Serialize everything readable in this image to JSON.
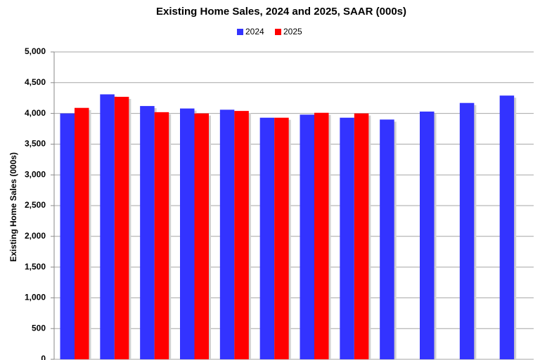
{
  "chart_data": {
    "type": "bar",
    "title": "Existing Home Sales,  2024 and 2025, SAAR (000s)",
    "y_label": "Existing Home Sales (000s)",
    "categories": [
      null,
      null,
      null,
      null,
      null,
      null,
      null,
      null,
      null,
      null,
      null,
      null
    ],
    "series": [
      {
        "name": "2024",
        "color": "#3333ff",
        "values": [
          4000,
          4310,
          4120,
          4080,
          4060,
          3930,
          3980,
          3930,
          3900,
          4030,
          4170,
          4290
        ]
      },
      {
        "name": "2025",
        "color": "#ff0000",
        "values": [
          4090,
          4270,
          4020,
          4000,
          4040,
          3930,
          4010,
          4000,
          null,
          null,
          null,
          null
        ]
      }
    ],
    "ylim": [
      0,
      5000
    ],
    "yticks": [
      0,
      {
        "value": 500,
        "label": "500"
      },
      {
        "value": 1000,
        "label": "1,000"
      },
      {
        "value": 1500,
        "label": "1,500"
      },
      {
        "value": 2000,
        "label": "2,000"
      },
      {
        "value": 2500,
        "label": "2,500"
      },
      {
        "value": 3000,
        "label": "3,000"
      },
      {
        "value": 3500,
        "label": "3,500"
      },
      {
        "value": 4000,
        "label": "4,000"
      },
      {
        "value": 4500,
        "label": "4,500"
      },
      {
        "value": 5000,
        "label": "5,000"
      }
    ],
    "grid": true
  }
}
